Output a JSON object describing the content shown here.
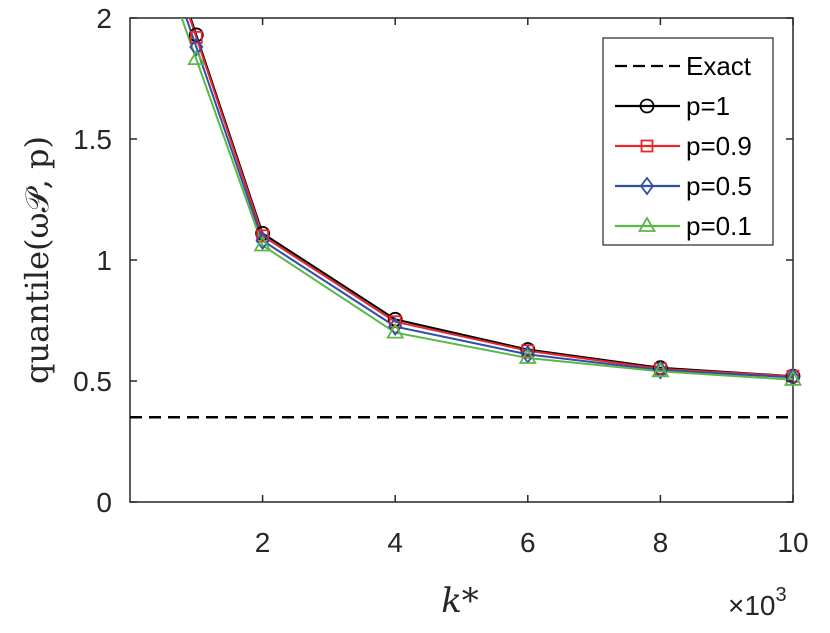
{
  "chart_data": {
    "type": "line",
    "xlabel": "k*",
    "ylabel": "quantile(ω𝒫, p)",
    "x_exponent_label": "×10",
    "x_exponent_power": "3",
    "xlim": [
      0,
      10
    ],
    "ylim": [
      0,
      2
    ],
    "xticks": [
      "2",
      "4",
      "6",
      "8",
      "10"
    ],
    "yticks": [
      "0",
      "0.5",
      "1",
      "1.5",
      "2"
    ],
    "x": [
      1,
      2,
      4,
      6,
      8,
      10
    ],
    "legend_position": "top-right",
    "grid": false,
    "reference": {
      "name": "Exact",
      "y": 0.35,
      "color": "#000000",
      "style": "dashed"
    },
    "series": [
      {
        "name": "p=1",
        "color": "#000000",
        "marker": "circle",
        "values": [
          1.93,
          1.11,
          0.755,
          0.63,
          0.555,
          0.52
        ]
      },
      {
        "name": "p=0.9",
        "color": "#e8262a",
        "marker": "square",
        "values": [
          1.92,
          1.1,
          0.745,
          0.625,
          0.55,
          0.52
        ]
      },
      {
        "name": "p=0.5",
        "color": "#2f4fa8",
        "marker": "diamond",
        "values": [
          1.88,
          1.08,
          0.725,
          0.61,
          0.545,
          0.515
        ]
      },
      {
        "name": "p=0.1",
        "color": "#59b847",
        "marker": "triangle",
        "values": [
          1.83,
          1.06,
          0.7,
          0.595,
          0.54,
          0.505
        ]
      }
    ]
  }
}
